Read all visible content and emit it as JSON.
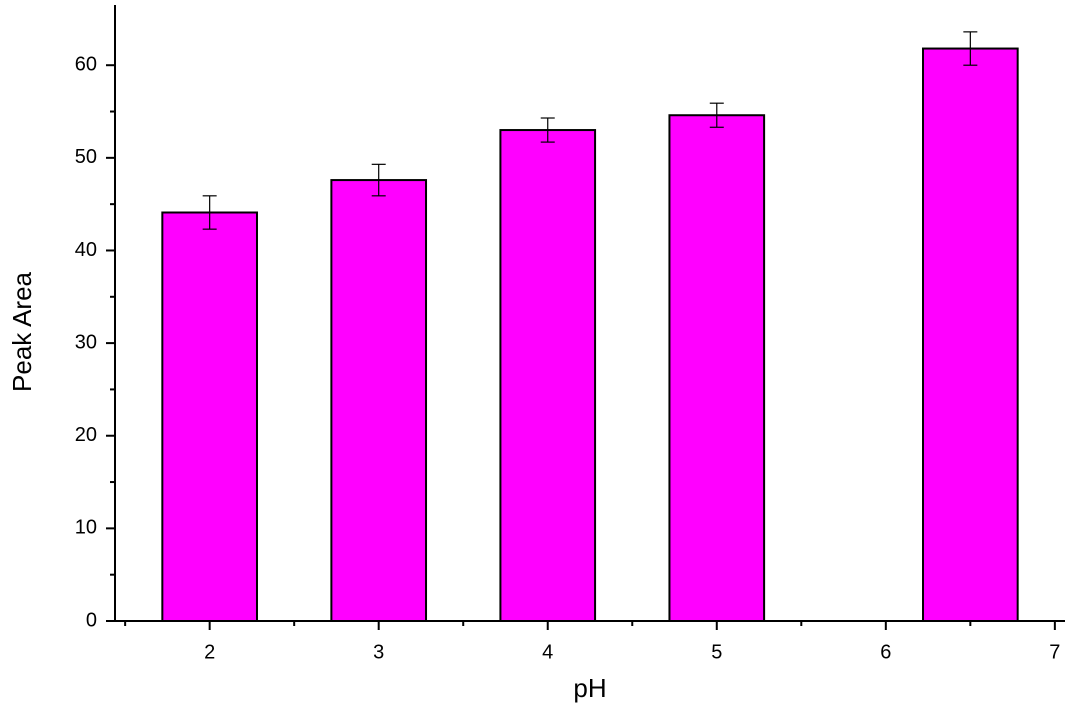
{
  "chart_data": {
    "type": "bar",
    "x_label": "pH",
    "y_label": "Peak Area",
    "x": [
      2,
      3,
      4,
      5,
      6.5
    ],
    "values": [
      44.1,
      47.6,
      53.0,
      54.6,
      61.8
    ],
    "errors": [
      1.8,
      1.7,
      1.3,
      1.3,
      1.8
    ],
    "color": "#ff00ff",
    "xlim": [
      1.44,
      7.06
    ],
    "xticks": [
      2,
      3,
      4,
      5,
      6,
      7
    ],
    "ylim": [
      0,
      66.5
    ],
    "yticks": [
      0,
      10,
      20,
      30,
      40,
      50,
      60
    ]
  }
}
